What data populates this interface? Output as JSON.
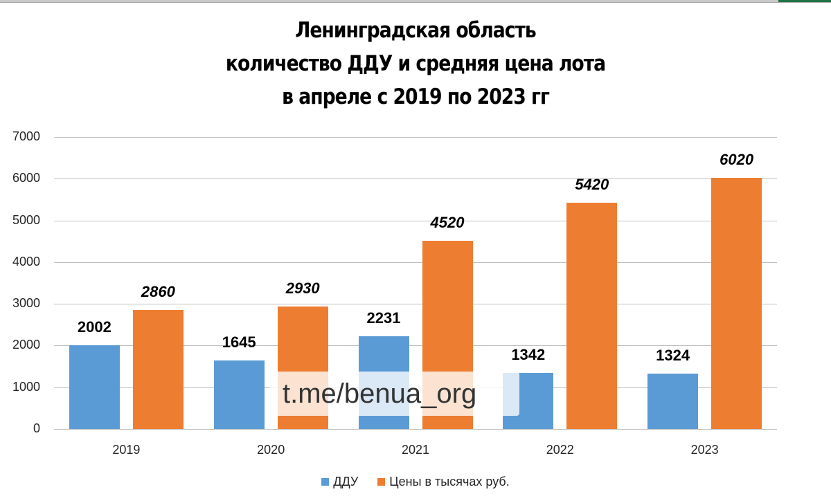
{
  "window": {
    "top_strip_accent": "#217346"
  },
  "chart_data": {
    "type": "bar",
    "title": "Ленинградская область количество ДДУ и средняя цена лота в апреле с 2019 по 2023 гг",
    "title_lines": [
      "Ленинградская область",
      "количество ДДУ и средняя цена лота",
      "в апреле с 2019 по 2023 гг"
    ],
    "categories": [
      "2019",
      "2020",
      "2021",
      "2022",
      "2023"
    ],
    "series": [
      {
        "name": "ДДУ",
        "color": "#5b9bd5",
        "values": [
          2002,
          1645,
          2231,
          1342,
          1324
        ],
        "label_style": "bold"
      },
      {
        "name": "Цены в тысячах руб.",
        "color": "#ed7d31",
        "values": [
          2860,
          2930,
          4520,
          5420,
          6020
        ],
        "label_style": "bold-italic"
      }
    ],
    "xlabel": "",
    "ylabel": "",
    "ylim": [
      0,
      7000
    ],
    "yticks": [
      "0",
      "1000",
      "2000",
      "3000",
      "4000",
      "5000",
      "6000",
      "7000"
    ],
    "grid": true,
    "legend_position": "bottom"
  },
  "watermark": {
    "text": "t.me/benua_org"
  },
  "legend": {
    "items": [
      {
        "label": "ДДУ",
        "color": "#5b9bd5"
      },
      {
        "label": "Цены в тысячах руб.",
        "color": "#ed7d31"
      }
    ]
  }
}
